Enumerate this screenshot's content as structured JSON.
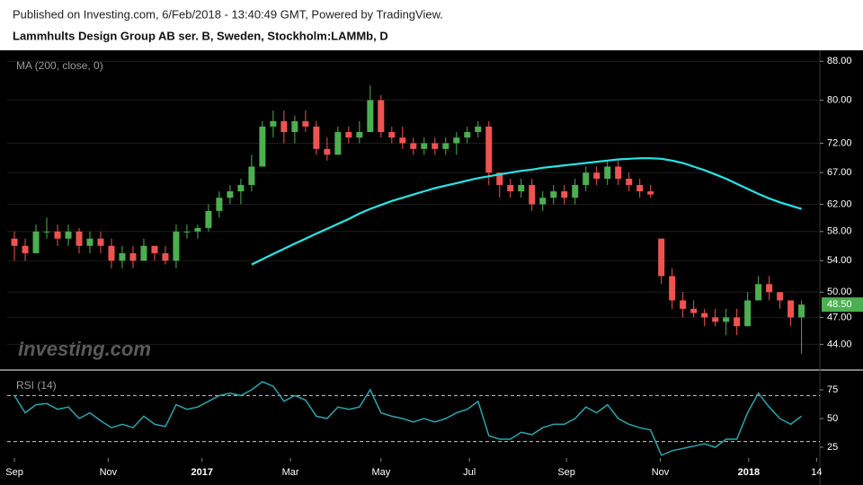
{
  "header": {
    "published": "Published on Investing.com, 6/Feb/2018 - 13:40:49 GMT, Powered by TradingView.",
    "title": "Lammhults Design Group AB ser. B, Sweden, Stockholm:LAMMb, D",
    "watermark": "Investing.com"
  },
  "chart_data": [
    {
      "type": "candlestick",
      "label": "MA (200, close, 0)",
      "log_scale": true,
      "grid": true,
      "up_color": "#4caf50",
      "down_color": "#ef5350",
      "x": [
        0,
        1,
        2,
        3,
        4,
        5,
        6,
        7,
        8,
        9,
        10,
        11,
        12,
        13,
        14,
        15,
        16,
        17,
        18,
        19,
        20,
        21,
        22,
        23,
        24,
        25,
        26,
        27,
        28,
        29,
        30,
        31,
        32,
        33,
        34,
        35,
        36,
        37,
        38,
        39,
        40,
        41,
        42,
        43,
        44,
        45,
        46,
        47,
        48,
        49,
        50,
        51,
        52,
        53,
        54,
        55,
        56,
        57,
        58,
        59,
        60,
        61,
        62,
        63,
        64,
        65,
        66,
        67,
        68,
        69,
        70,
        71,
        72,
        73
      ],
      "open": [
        57,
        56,
        55,
        58,
        58,
        57,
        58,
        56,
        57,
        56,
        54,
        55,
        54,
        56,
        55,
        54,
        58,
        58,
        58.5,
        61,
        63,
        64,
        65,
        68,
        75,
        76,
        74,
        76,
        75,
        71,
        70,
        74,
        73,
        74,
        80,
        74,
        73,
        72,
        71,
        72,
        71,
        72,
        73,
        74,
        75,
        67,
        65,
        64,
        65,
        62,
        63,
        64,
        63,
        65,
        67,
        66,
        68,
        66,
        65,
        64,
        57,
        52,
        49,
        48,
        47.5,
        47,
        46.5,
        47,
        46,
        49,
        51,
        50,
        49,
        47
      ],
      "high": [
        58,
        57,
        59,
        60,
        59,
        59,
        58.5,
        58,
        58,
        57,
        56,
        56,
        57,
        56,
        56,
        59,
        59,
        59,
        62,
        64,
        65,
        66,
        70,
        76,
        78,
        78,
        77,
        78,
        76,
        73,
        75,
        75,
        76,
        83,
        81,
        75,
        75,
        73,
        73,
        73,
        73,
        74,
        75,
        76,
        76,
        67,
        66,
        66,
        66,
        64,
        65,
        65,
        66,
        68,
        68,
        69,
        69,
        67,
        66,
        65,
        57,
        53,
        50,
        49,
        48,
        48,
        48,
        48,
        50,
        52,
        52,
        50,
        49,
        49
      ],
      "low": [
        54,
        54,
        55,
        57,
        56,
        56,
        55,
        55,
        55,
        53,
        53,
        53,
        54,
        54,
        53.5,
        53,
        57,
        57,
        58,
        60,
        62,
        62,
        64,
        68,
        73,
        72,
        72,
        74,
        70,
        69,
        70,
        72,
        72,
        74,
        73,
        72,
        71,
        70,
        70,
        70,
        70,
        70,
        72,
        73,
        65,
        63,
        63,
        63,
        61,
        61,
        62,
        62,
        62,
        64,
        65,
        65,
        65,
        64,
        63,
        63,
        51,
        48,
        47,
        47,
        46,
        46,
        45,
        45,
        46,
        49,
        49,
        48,
        46,
        43
      ],
      "close": [
        56,
        55,
        58,
        58,
        57,
        58,
        56,
        57,
        56,
        54,
        55,
        54,
        56,
        55,
        54,
        58,
        58,
        58.5,
        61,
        63,
        64,
        65,
        68,
        75,
        76,
        74,
        76,
        75,
        71,
        70,
        74,
        73,
        74,
        80,
        74,
        73,
        72,
        71,
        72,
        71,
        72,
        73,
        74,
        75,
        67,
        65,
        64,
        65,
        62,
        63,
        64,
        63,
        65,
        67,
        66,
        68,
        66,
        65,
        64,
        63.5,
        52,
        49,
        48,
        47.5,
        47,
        46.5,
        47,
        46,
        49,
        51,
        50,
        49,
        47,
        48.5
      ],
      "last_close": {
        "value": 48.5,
        "label": "48.50"
      },
      "series": [
        {
          "name": "MA (200, close, 0)",
          "color": "#26e6e6",
          "values": [
            null,
            null,
            null,
            null,
            null,
            null,
            null,
            null,
            null,
            null,
            null,
            null,
            null,
            null,
            null,
            null,
            null,
            null,
            null,
            null,
            null,
            null,
            53.5,
            54.2,
            54.9,
            55.6,
            56.3,
            57.0,
            57.7,
            58.4,
            59.1,
            59.8,
            60.6,
            61.3,
            61.9,
            62.5,
            63.0,
            63.5,
            64.0,
            64.5,
            64.9,
            65.3,
            65.7,
            66.1,
            66.4,
            66.7,
            67.0,
            67.3,
            67.5,
            67.8,
            68.0,
            68.2,
            68.4,
            68.6,
            68.8,
            69.0,
            69.2,
            69.3,
            69.4,
            69.4,
            69.3,
            69.0,
            68.6,
            68.0,
            67.4,
            66.7,
            66.0,
            65.2,
            64.4,
            63.6,
            62.9,
            62.3,
            61.8,
            61.3
          ]
        }
      ],
      "xlim": [
        -0.67,
        74.7
      ],
      "ylim": [
        41.5,
        90
      ],
      "yticks": [
        {
          "value": 88,
          "label": "88.00"
        },
        {
          "value": 80,
          "label": "80.00"
        },
        {
          "value": 72,
          "label": "72.00"
        },
        {
          "value": 67,
          "label": "67.00"
        },
        {
          "value": 62,
          "label": "62.00"
        },
        {
          "value": 58,
          "label": "58.00"
        },
        {
          "value": 54,
          "label": "54.00"
        },
        {
          "value": 50,
          "label": "50.00"
        },
        {
          "value": 47,
          "label": "47.00"
        },
        {
          "value": 44,
          "label": "44.00"
        }
      ]
    },
    {
      "type": "line",
      "label": "RSI (14)",
      "levels": [
        70,
        30
      ],
      "x": [
        0,
        1,
        2,
        3,
        4,
        5,
        6,
        7,
        8,
        9,
        10,
        11,
        12,
        13,
        14,
        15,
        16,
        17,
        18,
        19,
        20,
        21,
        22,
        23,
        24,
        25,
        26,
        27,
        28,
        29,
        30,
        31,
        32,
        33,
        34,
        35,
        36,
        37,
        38,
        39,
        40,
        41,
        42,
        43,
        44,
        45,
        46,
        47,
        48,
        49,
        50,
        51,
        52,
        53,
        54,
        55,
        56,
        57,
        58,
        59,
        60,
        61,
        62,
        63,
        64,
        65,
        66,
        67,
        68,
        69,
        70,
        71,
        72,
        73
      ],
      "series": [
        {
          "name": "RSI (14)",
          "color": "#26a6b0",
          "values": [
            70,
            55,
            62,
            63,
            58,
            60,
            50,
            55,
            48,
            42,
            45,
            42,
            52,
            45,
            43,
            62,
            58,
            60,
            65,
            70,
            72,
            70,
            75,
            82,
            78,
            65,
            70,
            66,
            52,
            50,
            60,
            58,
            60,
            75,
            55,
            52,
            50,
            47,
            50,
            47,
            50,
            55,
            58,
            65,
            35,
            32,
            32,
            38,
            36,
            42,
            45,
            45,
            50,
            60,
            55,
            62,
            50,
            45,
            42,
            40,
            18,
            22,
            24,
            26,
            28,
            25,
            32,
            32,
            55,
            72,
            60,
            50,
            45,
            52
          ]
        }
      ],
      "xlim": [
        -0.67,
        74.7
      ],
      "ylim": [
        15.6,
        91.4
      ],
      "yticks": [
        75,
        50,
        25
      ],
      "xticks": [
        {
          "value": 0,
          "label": "Sep"
        },
        {
          "value": 8.7,
          "label": "Nov"
        },
        {
          "value": 17.4,
          "label": "2017"
        },
        {
          "value": 25.6,
          "label": "Mar"
        },
        {
          "value": 34.0,
          "label": "May"
        },
        {
          "value": 42.2,
          "label": "Jul"
        },
        {
          "value": 51.2,
          "label": "Sep"
        },
        {
          "value": 59.9,
          "label": "Nov"
        },
        {
          "value": 68.1,
          "label": "2018"
        },
        {
          "value": 74.4,
          "label": "14"
        }
      ]
    }
  ]
}
